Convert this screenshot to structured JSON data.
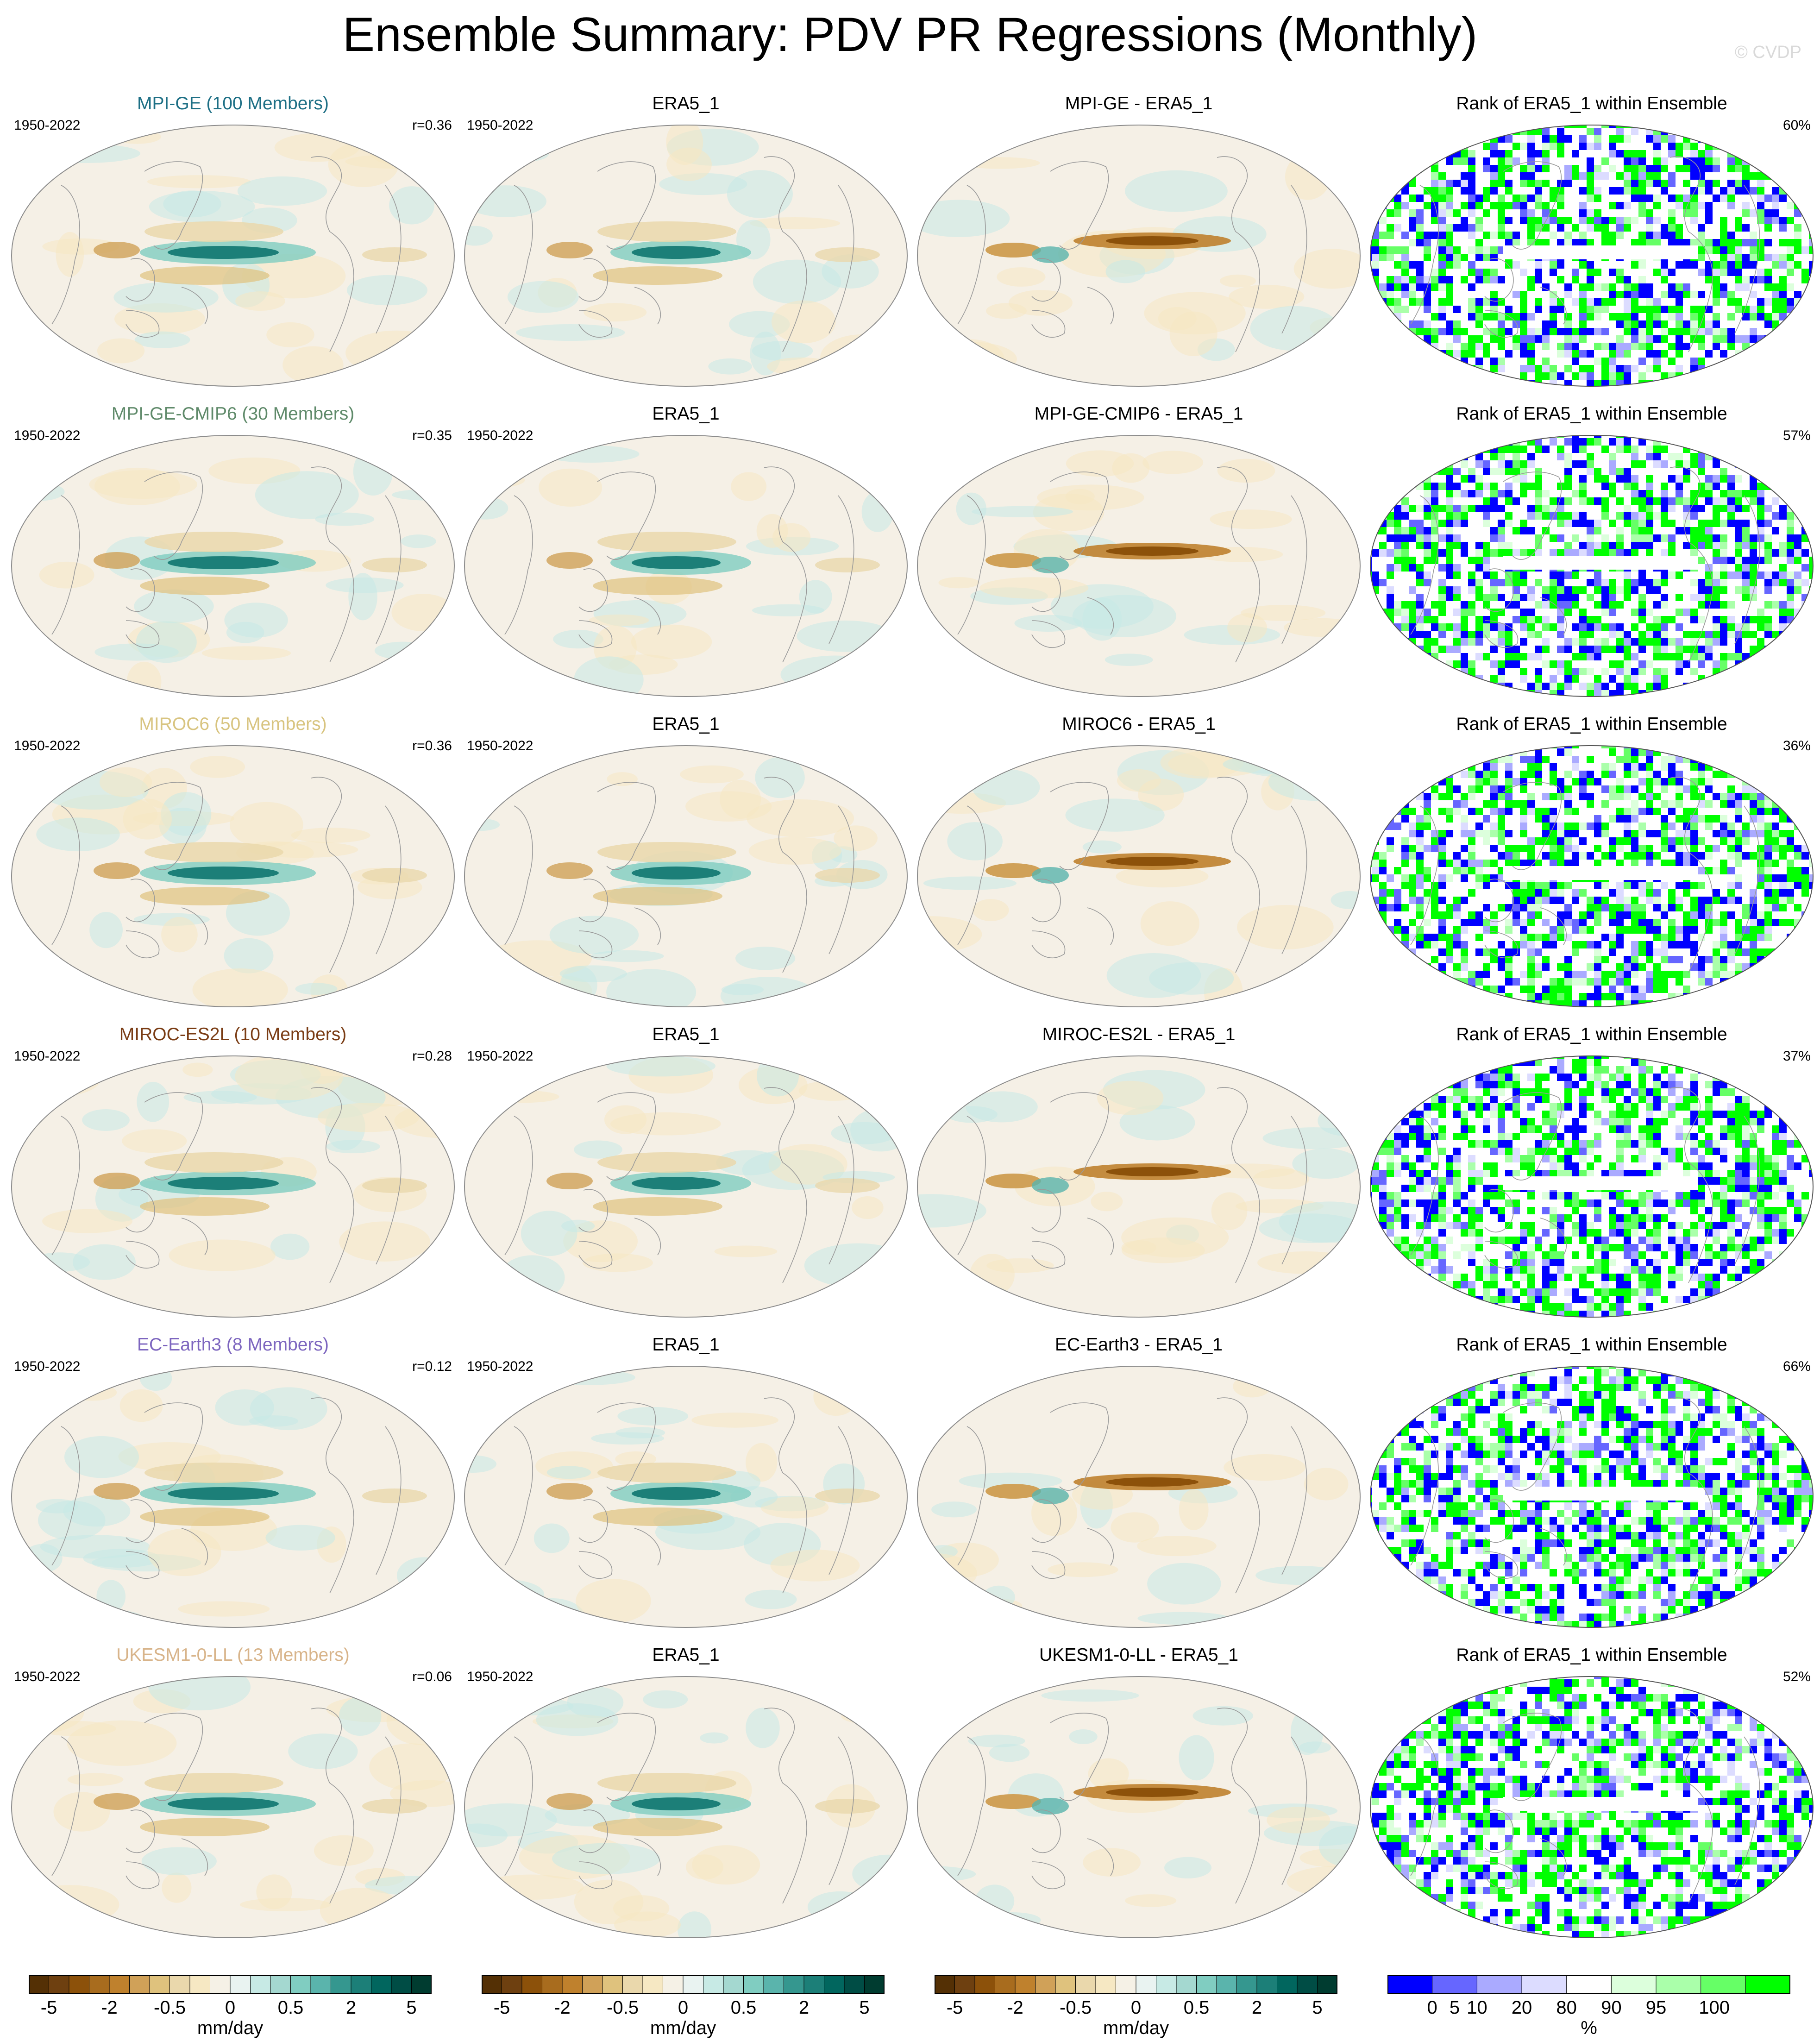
{
  "title": "Ensemble Summary: PDV PR Regressions (Monthly)",
  "credit": "© CVDP",
  "period": "1950-2022",
  "column_titles": {
    "obs": "ERA5_1",
    "rank": "Rank of ERA5_1 within Ensemble"
  },
  "rows": [
    {
      "model_title": "MPI-GE (100 Members)",
      "color": "#1d6f85",
      "r": "r=0.36",
      "diff_title": "MPI-GE - ERA5_1",
      "rank_pct": "60%"
    },
    {
      "model_title": "MPI-GE-CMIP6 (30 Members)",
      "color": "#5f8a6a",
      "r": "r=0.35",
      "diff_title": "MPI-GE-CMIP6 - ERA5_1",
      "rank_pct": "57%"
    },
    {
      "model_title": "MIROC6 (50 Members)",
      "color": "#d8c480",
      "r": "r=0.36",
      "diff_title": "MIROC6 - ERA5_1",
      "rank_pct": "36%"
    },
    {
      "model_title": "MIROC-ES2L (10 Members)",
      "color": "#7a3c14",
      "r": "r=0.28",
      "diff_title": "MIROC-ES2L - ERA5_1",
      "rank_pct": "37%"
    },
    {
      "model_title": "EC-Earth3 (8 Members)",
      "color": "#7d66bf",
      "r": "r=0.12",
      "diff_title": "EC-Earth3 - ERA5_1",
      "rank_pct": "66%"
    },
    {
      "model_title": "UKESM1-0-LL (13 Members)",
      "color": "#d8b48a",
      "r": "r=0.06",
      "diff_title": "UKESM1-0-LL - ERA5_1",
      "rank_pct": "52%"
    }
  ],
  "colorbars": {
    "pr": {
      "unit": "mm/day",
      "tick_labels": [
        "-5",
        "-2",
        "-0.5",
        "0",
        "0.5",
        "2",
        "5"
      ],
      "colors": [
        "#543005",
        "#6e4010",
        "#8c510a",
        "#a86c1e",
        "#bf812d",
        "#d0a158",
        "#dfc27d",
        "#ead8ac",
        "#f6e8c3",
        "#f5f1e6",
        "#e9f3f1",
        "#c7eae5",
        "#a4d8d0",
        "#80cdc1",
        "#5ab4ac",
        "#35978f",
        "#1c7f78",
        "#01665e",
        "#004d45",
        "#003c30"
      ]
    },
    "rank": {
      "unit": "%",
      "tick_labels": [
        "0",
        "5",
        "10",
        "20",
        "80",
        "90",
        "95",
        "100"
      ],
      "colors": [
        "#0000ff",
        "#6666ff",
        "#aaaaff",
        "#dcdcff",
        "#ffffff",
        "#dcffdc",
        "#aaffaa",
        "#66ff66",
        "#00ff00"
      ]
    }
  },
  "chart_data": {
    "type": "heatmap",
    "projection": "Robinson (Pacific-centred global maps)",
    "layout": "6 rows x 4 columns of global maps",
    "columns": [
      "ensemble mean regression",
      "ERA5_1",
      "model - ERA5_1",
      "rank of ERA5_1 within ensemble"
    ],
    "variable": "PR regression on PDV index",
    "units": "mm/day",
    "range": [
      -5,
      5
    ],
    "rank_units": "%",
    "rank_range": [
      0,
      100
    ]
  }
}
